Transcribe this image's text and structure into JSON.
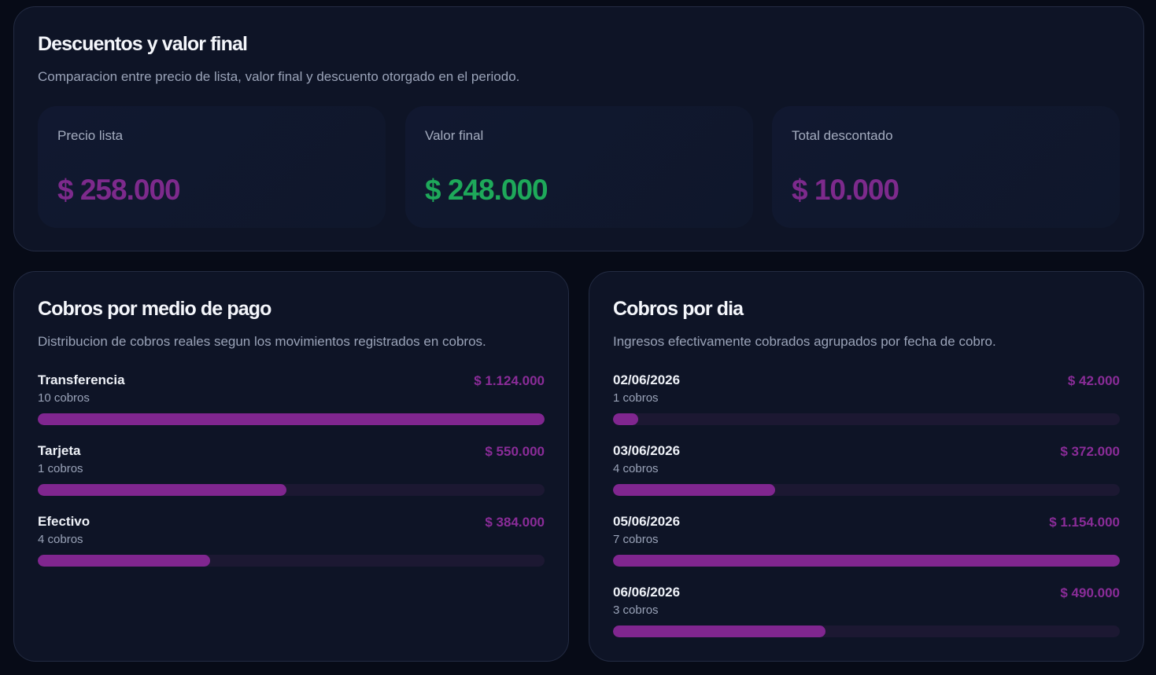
{
  "discounts": {
    "title": "Descuentos y valor final",
    "subtitle": "Comparacion entre precio de lista, valor final y descuento otorgado en el periodo.",
    "metrics": [
      {
        "label": "Precio lista",
        "value": "$ 258.000",
        "color": "#7d2a8c"
      },
      {
        "label": "Valor final",
        "value": "$ 248.000",
        "color": "#1ea95a"
      },
      {
        "label": "Total descontado",
        "value": "$ 10.000",
        "color": "#7d2a8c"
      }
    ]
  },
  "payment_methods": {
    "title": "Cobros por medio de pago",
    "subtitle": "Distribucion de cobros reales segun los movimientos registrados en cobros.",
    "items": [
      {
        "name": "Transferencia",
        "count": "10 cobros",
        "amount": "$ 1.124.000",
        "fraction": 1.0
      },
      {
        "name": "Tarjeta",
        "count": "1 cobros",
        "amount": "$ 550.000",
        "fraction": 0.49
      },
      {
        "name": "Efectivo",
        "count": "4 cobros",
        "amount": "$ 384.000",
        "fraction": 0.34
      }
    ]
  },
  "daily": {
    "title": "Cobros por dia",
    "subtitle": "Ingresos efectivamente cobrados agrupados por fecha de cobro.",
    "items": [
      {
        "name": "02/06/2026",
        "count": "1 cobros",
        "amount": "$ 42.000",
        "fraction": 0.05
      },
      {
        "name": "03/06/2026",
        "count": "4 cobros",
        "amount": "$ 372.000",
        "fraction": 0.32
      },
      {
        "name": "05/06/2026",
        "count": "7 cobros",
        "amount": "$ 1.154.000",
        "fraction": 1.0
      },
      {
        "name": "06/06/2026",
        "count": "3 cobros",
        "amount": "$ 490.000",
        "fraction": 0.42
      }
    ]
  }
}
